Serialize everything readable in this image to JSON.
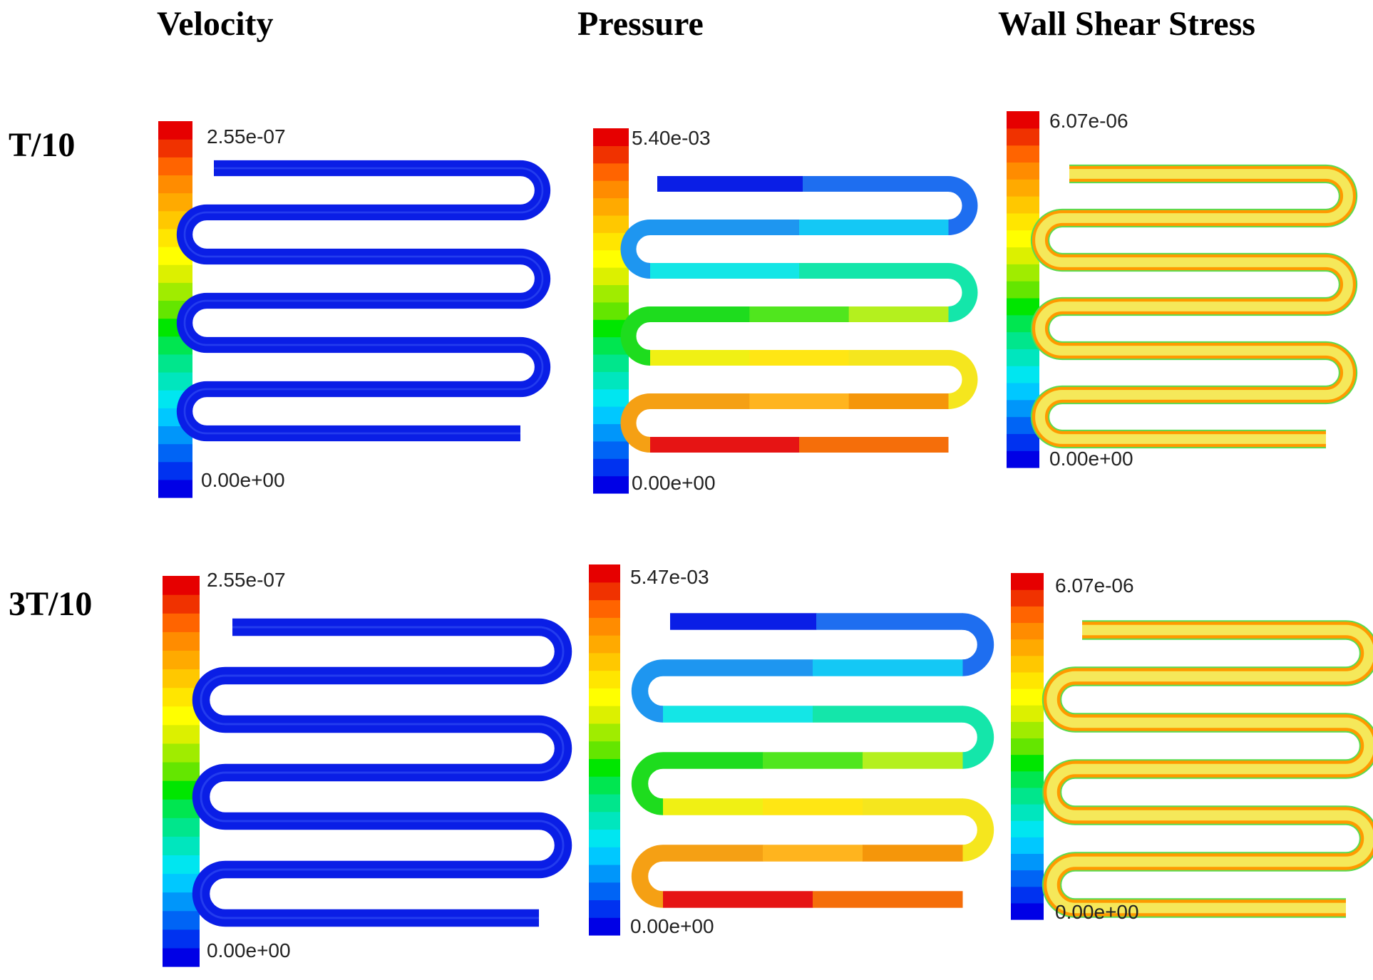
{
  "columns": [
    {
      "title": "Velocity"
    },
    {
      "title": "Pressure"
    },
    {
      "title": "Wall Shear Stress"
    }
  ],
  "rows": [
    {
      "label": "T/10"
    },
    {
      "label": "3T/10"
    }
  ],
  "panels": [
    {
      "row": 0,
      "col": 0,
      "field": "velocity",
      "max_label": "2.55e-07",
      "min_label": "0.00e+00"
    },
    {
      "row": 0,
      "col": 1,
      "field": "pressure",
      "max_label": "5.40e-03",
      "min_label": "0.00e+00"
    },
    {
      "row": 0,
      "col": 2,
      "field": "wss",
      "max_label": "6.07e-06",
      "min_label": "0.00e+00"
    },
    {
      "row": 1,
      "col": 0,
      "field": "velocity",
      "max_label": "2.55e-07",
      "min_label": "0.00e+00"
    },
    {
      "row": 1,
      "col": 1,
      "field": "pressure",
      "max_label": "5.47e-03",
      "min_label": "0.00e+00"
    },
    {
      "row": 1,
      "col": 2,
      "field": "wss",
      "max_label": "6.07e-06",
      "min_label": "0.00e+00"
    }
  ],
  "colors": {
    "colorbar_bottom_to_top": [
      "#0000e6",
      "#0032f0",
      "#0064f5",
      "#0096fa",
      "#00c8ff",
      "#00e6f0",
      "#00e6be",
      "#00e68c",
      "#00e650",
      "#00e600",
      "#64e600",
      "#a0ec00",
      "#dcf000",
      "#ffff00",
      "#ffe600",
      "#ffc800",
      "#ffaa00",
      "#ff8c00",
      "#ff6400",
      "#f03200",
      "#e60000"
    ],
    "velocity_channel": "#0a1ee6",
    "wss_fill": "#f5e85a",
    "wss_edge": "#ff9a00",
    "wss_outer": "#5adc50",
    "pressure_legs": [
      [
        "#0a1ee6",
        "#1e6ef0"
      ],
      [
        "#1e96f0",
        "#14c8f5"
      ],
      [
        "#14e6e6",
        "#14e6aa"
      ],
      [
        "#1edc1e",
        "#50e61e",
        "#b4f01e"
      ],
      [
        "#f0f014",
        "#ffe614",
        "#f5e61e"
      ],
      [
        "#f5a014",
        "#ffb41e",
        "#f5960a"
      ],
      [
        "#e61414",
        "#f56e0a"
      ]
    ]
  }
}
